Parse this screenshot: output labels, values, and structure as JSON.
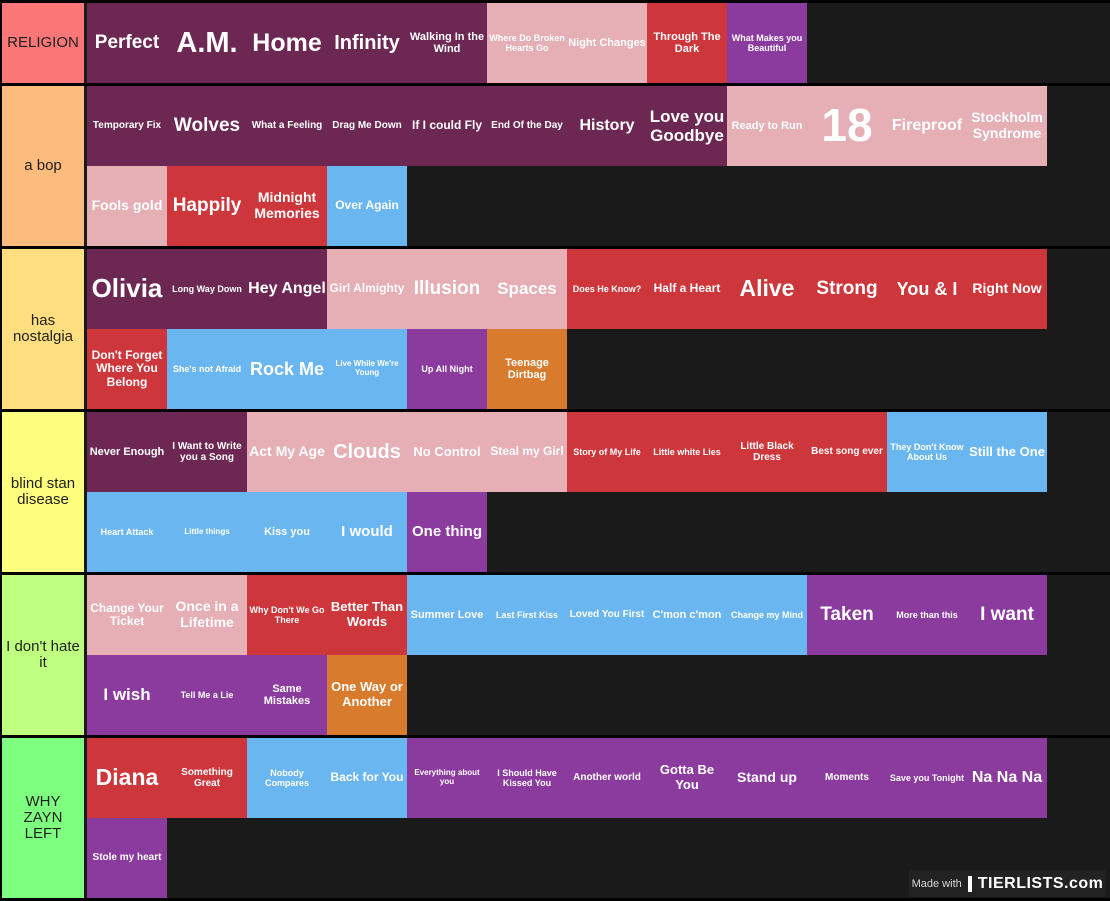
{
  "colors": {
    "plum": "#6c2752",
    "pink": "#e5afb5",
    "red": "#cd363a",
    "purple": "#8b3a9d",
    "blue": "#6ab6f0",
    "orange": "#d97b2d",
    "row_bg": "#1a1a1a"
  },
  "tiers": [
    {
      "label": "RELIGION",
      "color": "#fb7777",
      "items": [
        {
          "text": "Perfect",
          "color": "plum",
          "size": 19
        },
        {
          "text": "A.M.",
          "color": "plum",
          "size": 29
        },
        {
          "text": "Home",
          "color": "plum",
          "size": 25
        },
        {
          "text": "Infinity",
          "color": "plum",
          "size": 20
        },
        {
          "text": "Walking In the Wind",
          "color": "plum",
          "size": 11
        },
        {
          "text": "Where Do Broken Hearts Go",
          "color": "pink",
          "size": 9
        },
        {
          "text": "Night Changes",
          "color": "pink",
          "size": 11
        },
        {
          "text": "Through The Dark",
          "color": "red",
          "size": 11
        },
        {
          "text": "What Makes you Beautiful",
          "color": "purple",
          "size": 9
        }
      ]
    },
    {
      "label": "a bop",
      "color": "#fdbb7e",
      "items": [
        {
          "text": "Temporary Fix",
          "color": "plum",
          "size": 10
        },
        {
          "text": "Wolves",
          "color": "plum",
          "size": 19
        },
        {
          "text": "What a Feeling",
          "color": "plum",
          "size": 10
        },
        {
          "text": "Drag Me Down",
          "color": "plum",
          "size": 10
        },
        {
          "text": "If I could Fly",
          "color": "plum",
          "size": 12
        },
        {
          "text": "End Of the Day",
          "color": "plum",
          "size": 10
        },
        {
          "text": "History",
          "color": "plum",
          "size": 16
        },
        {
          "text": "Love you Goodbye",
          "color": "plum",
          "size": 17
        },
        {
          "text": "Ready to Run",
          "color": "pink",
          "size": 11
        },
        {
          "text": "18",
          "color": "pink",
          "size": 46
        },
        {
          "text": "Fireproof",
          "color": "pink",
          "size": 16
        },
        {
          "text": "Stockholm Syndrome",
          "color": "pink",
          "size": 14
        },
        {
          "text": "Fools gold",
          "color": "pink",
          "size": 14
        },
        {
          "text": "Happily",
          "color": "red",
          "size": 19
        },
        {
          "text": "Midnight Memories",
          "color": "red",
          "size": 14
        },
        {
          "text": "Over Again",
          "color": "blue",
          "size": 12
        }
      ]
    },
    {
      "label": "has nostalgia",
      "color": "#ffde80",
      "items": [
        {
          "text": "Olivia",
          "color": "plum",
          "size": 26
        },
        {
          "text": "Long Way Down",
          "color": "plum",
          "size": 9
        },
        {
          "text": "Hey Angel",
          "color": "plum",
          "size": 16
        },
        {
          "text": "Girl Almighty",
          "color": "pink",
          "size": 12
        },
        {
          "text": "Illusion",
          "color": "pink",
          "size": 19
        },
        {
          "text": "Spaces",
          "color": "pink",
          "size": 17
        },
        {
          "text": "Does He Know?",
          "color": "red",
          "size": 9
        },
        {
          "text": "Half a Heart",
          "color": "red",
          "size": 12
        },
        {
          "text": "Alive",
          "color": "red",
          "size": 23
        },
        {
          "text": "Strong",
          "color": "red",
          "size": 19
        },
        {
          "text": "You & I",
          "color": "red",
          "size": 18
        },
        {
          "text": "Right Now",
          "color": "red",
          "size": 14
        },
        {
          "text": "Don't Forget Where You Belong",
          "color": "red",
          "size": 12
        },
        {
          "text": "She's not Afraid",
          "color": "blue",
          "size": 9
        },
        {
          "text": "Rock Me",
          "color": "blue",
          "size": 18
        },
        {
          "text": "Live While We're Young",
          "color": "blue",
          "size": 8
        },
        {
          "text": "Up All Night",
          "color": "purple",
          "size": 9
        },
        {
          "text": "Teenage Dirtbag",
          "color": "orange",
          "size": 11
        }
      ]
    },
    {
      "label": "blind stan disease",
      "color": "#ffff7f",
      "items": [
        {
          "text": "Never Enough",
          "color": "plum",
          "size": 11
        },
        {
          "text": "I Want to Write you a Song",
          "color": "plum",
          "size": 10
        },
        {
          "text": "Act My Age",
          "color": "pink",
          "size": 14
        },
        {
          "text": "Clouds",
          "color": "pink",
          "size": 20
        },
        {
          "text": "No Control",
          "color": "pink",
          "size": 13
        },
        {
          "text": "Steal my Girl",
          "color": "pink",
          "size": 12
        },
        {
          "text": "Story of My Life",
          "color": "red",
          "size": 9
        },
        {
          "text": "Little white Lies",
          "color": "red",
          "size": 9
        },
        {
          "text": "Little Black Dress",
          "color": "red",
          "size": 10
        },
        {
          "text": "Best song ever",
          "color": "red",
          "size": 10
        },
        {
          "text": "They Don't Know About Us",
          "color": "blue",
          "size": 9
        },
        {
          "text": "Still the One",
          "color": "blue",
          "size": 13
        },
        {
          "text": "Heart Attack",
          "color": "blue",
          "size": 9
        },
        {
          "text": "Little things",
          "color": "blue",
          "size": 8
        },
        {
          "text": "Kiss you",
          "color": "blue",
          "size": 11
        },
        {
          "text": "I would",
          "color": "blue",
          "size": 15
        },
        {
          "text": "One thing",
          "color": "purple",
          "size": 15
        }
      ]
    },
    {
      "label": "I don't hate it",
      "color": "#bfff7f",
      "items": [
        {
          "text": "Change Your Ticket",
          "color": "pink",
          "size": 12
        },
        {
          "text": "Once in a Lifetime",
          "color": "pink",
          "size": 14
        },
        {
          "text": "Why Don't We Go There",
          "color": "red",
          "size": 9
        },
        {
          "text": "Better Than Words",
          "color": "red",
          "size": 13
        },
        {
          "text": "Summer Love",
          "color": "blue",
          "size": 11
        },
        {
          "text": "Last First Kiss",
          "color": "blue",
          "size": 9
        },
        {
          "text": "Loved You First",
          "color": "blue",
          "size": 10
        },
        {
          "text": "C'mon c'mon",
          "color": "blue",
          "size": 11
        },
        {
          "text": "Change my Mind",
          "color": "blue",
          "size": 9
        },
        {
          "text": "Taken",
          "color": "purple",
          "size": 19
        },
        {
          "text": "More than this",
          "color": "purple",
          "size": 9
        },
        {
          "text": "I want",
          "color": "purple",
          "size": 19
        },
        {
          "text": "I wish",
          "color": "purple",
          "size": 17
        },
        {
          "text": "Tell Me a Lie",
          "color": "purple",
          "size": 9
        },
        {
          "text": "Same Mistakes",
          "color": "purple",
          "size": 11
        },
        {
          "text": "One Way or Another",
          "color": "orange",
          "size": 13
        }
      ]
    },
    {
      "label": "WHY ZAYN LEFT",
      "color": "#7fff7f",
      "items": [
        {
          "text": "Diana",
          "color": "red",
          "size": 23
        },
        {
          "text": "Something Great",
          "color": "red",
          "size": 10
        },
        {
          "text": "Nobody Compares",
          "color": "blue",
          "size": 9
        },
        {
          "text": "Back for You",
          "color": "blue",
          "size": 12
        },
        {
          "text": "Everything about you",
          "color": "purple",
          "size": 8
        },
        {
          "text": "I Should Have Kissed You",
          "color": "purple",
          "size": 9
        },
        {
          "text": "Another world",
          "color": "purple",
          "size": 10
        },
        {
          "text": "Gotta Be You",
          "color": "purple",
          "size": 13
        },
        {
          "text": "Stand up",
          "color": "purple",
          "size": 14
        },
        {
          "text": "Moments",
          "color": "purple",
          "size": 10
        },
        {
          "text": "Save you Tonight",
          "color": "purple",
          "size": 9
        },
        {
          "text": "Na Na Na",
          "color": "purple",
          "size": 16
        },
        {
          "text": "Stole my heart",
          "color": "purple",
          "size": 10
        }
      ]
    }
  ],
  "watermark": {
    "made_with": "Made with",
    "site": "TIERLISTS.com"
  }
}
